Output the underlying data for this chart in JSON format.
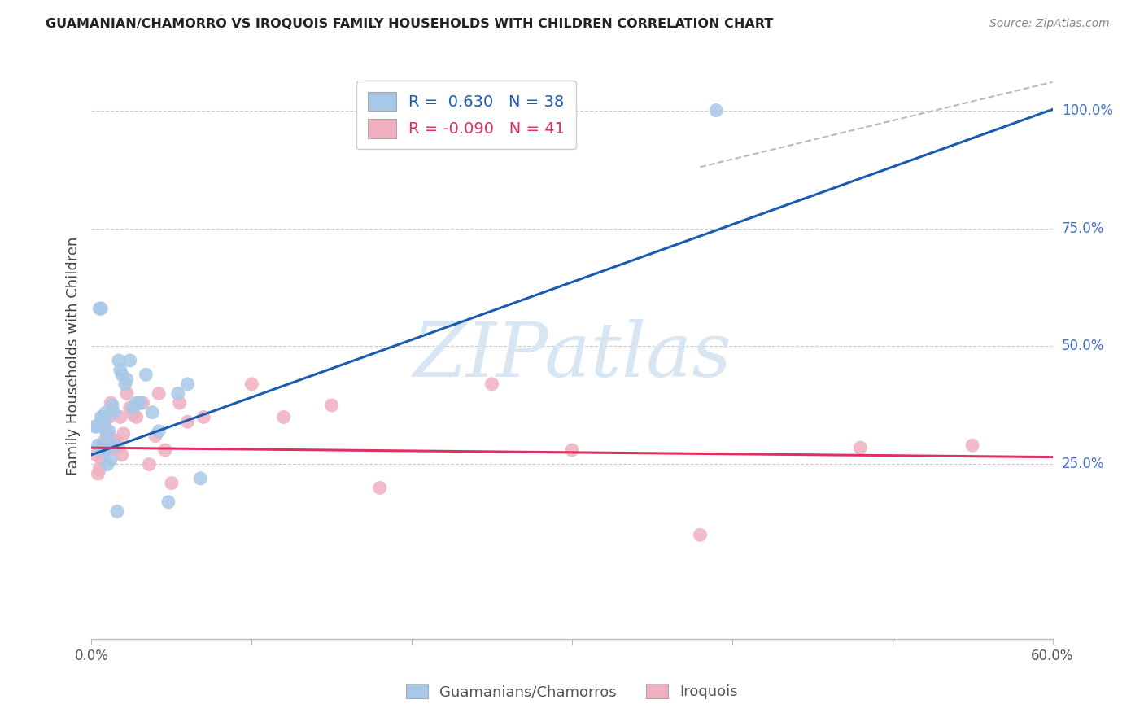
{
  "title": "GUAMANIAN/CHAMORRO VS IROQUOIS FAMILY HOUSEHOLDS WITH CHILDREN CORRELATION CHART",
  "source": "Source: ZipAtlas.com",
  "ylabel": "Family Households with Children",
  "xlim": [
    0.0,
    0.6
  ],
  "ylim": [
    -0.12,
    1.08
  ],
  "blue_R": 0.63,
  "blue_N": 38,
  "pink_R": -0.09,
  "pink_N": 41,
  "blue_color": "#A8C8E8",
  "pink_color": "#F0B0C0",
  "blue_line_color": "#1A5CB0",
  "pink_line_color": "#E03060",
  "blue_scatter_x": [
    0.002,
    0.003,
    0.004,
    0.005,
    0.005,
    0.006,
    0.006,
    0.007,
    0.007,
    0.008,
    0.008,
    0.009,
    0.009,
    0.01,
    0.01,
    0.011,
    0.012,
    0.013,
    0.014,
    0.015,
    0.016,
    0.017,
    0.018,
    0.019,
    0.021,
    0.022,
    0.024,
    0.026,
    0.028,
    0.03,
    0.034,
    0.038,
    0.042,
    0.048,
    0.054,
    0.06,
    0.068,
    0.39
  ],
  "blue_scatter_y": [
    0.33,
    0.33,
    0.29,
    0.29,
    0.58,
    0.58,
    0.35,
    0.28,
    0.35,
    0.34,
    0.28,
    0.32,
    0.36,
    0.3,
    0.25,
    0.32,
    0.26,
    0.375,
    0.36,
    0.29,
    0.15,
    0.47,
    0.45,
    0.44,
    0.42,
    0.43,
    0.47,
    0.37,
    0.38,
    0.38,
    0.44,
    0.36,
    0.32,
    0.17,
    0.4,
    0.42,
    0.22,
    1.0
  ],
  "pink_scatter_x": [
    0.003,
    0.004,
    0.005,
    0.006,
    0.007,
    0.008,
    0.009,
    0.01,
    0.011,
    0.012,
    0.013,
    0.014,
    0.015,
    0.016,
    0.017,
    0.018,
    0.019,
    0.02,
    0.022,
    0.024,
    0.026,
    0.028,
    0.03,
    0.032,
    0.036,
    0.04,
    0.042,
    0.046,
    0.05,
    0.055,
    0.06,
    0.07,
    0.1,
    0.12,
    0.15,
    0.18,
    0.25,
    0.3,
    0.38,
    0.48,
    0.55
  ],
  "pink_scatter_y": [
    0.27,
    0.23,
    0.24,
    0.26,
    0.33,
    0.3,
    0.28,
    0.315,
    0.35,
    0.38,
    0.29,
    0.3,
    0.285,
    0.3,
    0.285,
    0.35,
    0.27,
    0.315,
    0.4,
    0.37,
    0.355,
    0.35,
    0.38,
    0.38,
    0.25,
    0.31,
    0.4,
    0.28,
    0.21,
    0.38,
    0.34,
    0.35,
    0.42,
    0.35,
    0.375,
    0.2,
    0.42,
    0.28,
    0.1,
    0.285,
    0.29
  ],
  "watermark_text": "ZIPatlas",
  "background_color": "#FFFFFF",
  "grid_color": "#CCCCCC",
  "ytick_positions": [
    0.25,
    0.5,
    0.75,
    1.0
  ],
  "ytick_labels": [
    "25.0%",
    "50.0%",
    "75.0%",
    "100.0%"
  ],
  "xtick_positions": [
    0.0,
    0.1,
    0.2,
    0.3,
    0.4,
    0.5,
    0.6
  ],
  "xtick_labels": [
    "0.0%",
    "",
    "",
    "",
    "",
    "",
    "60.0%"
  ],
  "blue_line_intercept": 0.27,
  "blue_line_slope": 1.22,
  "pink_line_intercept": 0.285,
  "pink_line_slope": -0.033,
  "ref_line_x0": 0.38,
  "ref_line_x1": 0.6,
  "ref_line_y0": 0.88,
  "ref_line_y1": 1.06
}
